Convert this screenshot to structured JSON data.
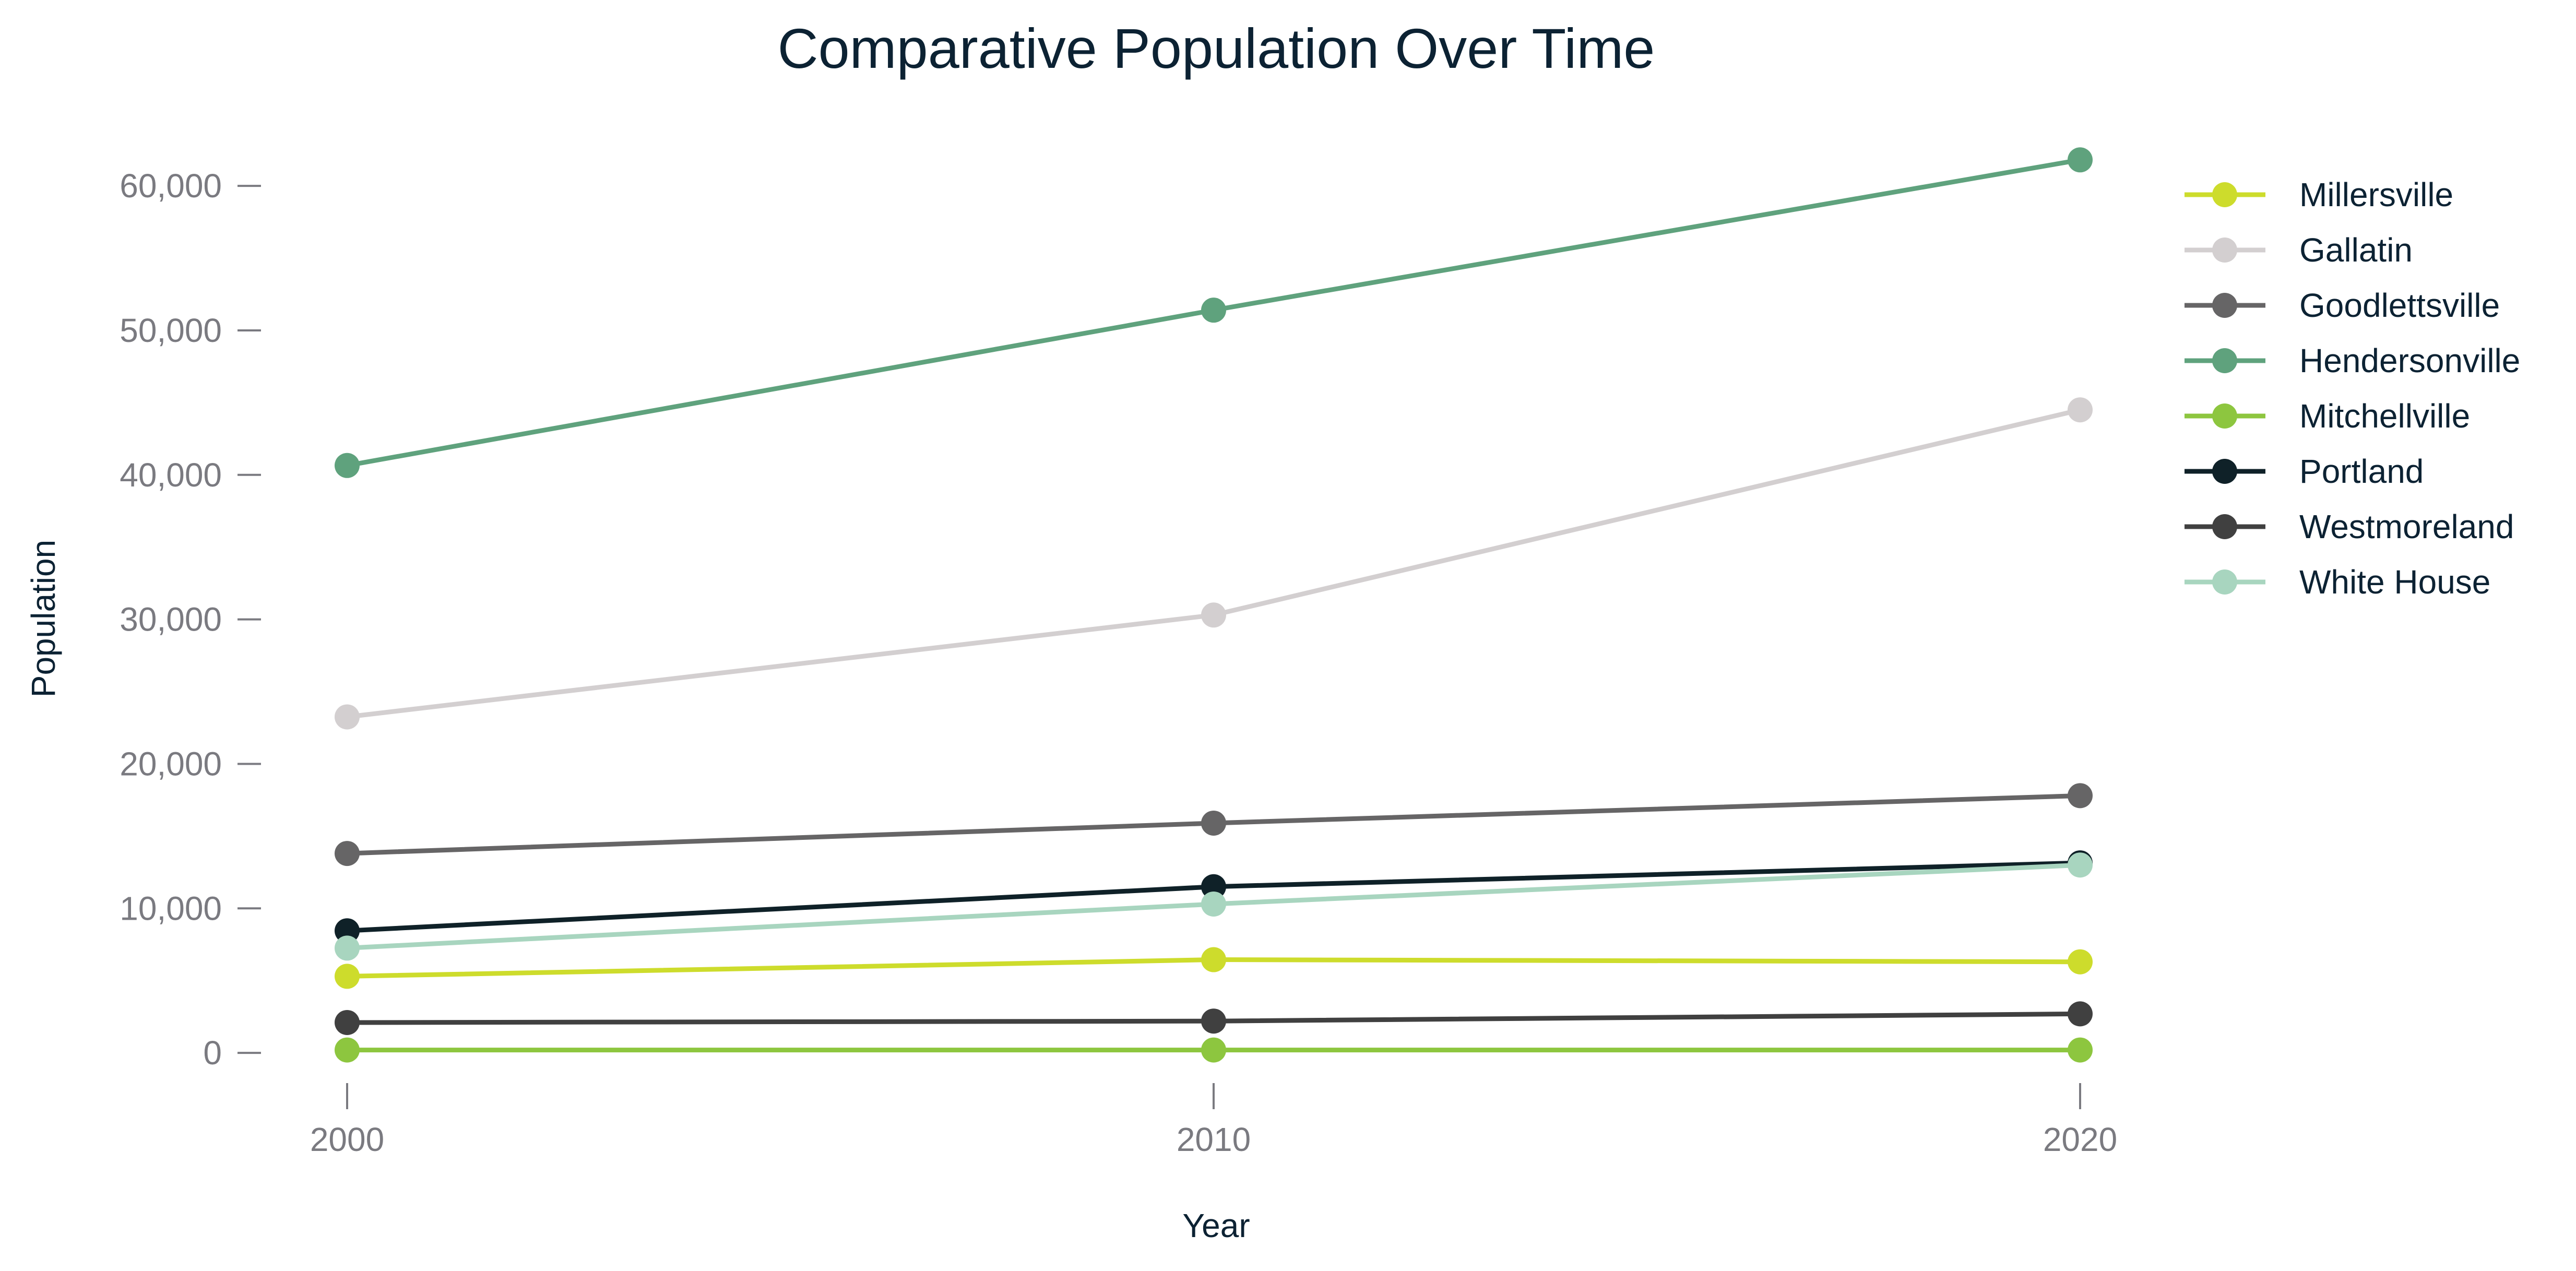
{
  "chart_data": {
    "type": "line",
    "title": "Comparative Population Over Time",
    "xlabel": "Year",
    "ylabel": "Population",
    "x": [
      2000,
      2010,
      2020
    ],
    "x_tick_labels": [
      "2000",
      "2010",
      "2020"
    ],
    "y_ticks": [
      0,
      10000,
      20000,
      30000,
      40000,
      50000,
      60000
    ],
    "y_tick_labels": [
      "0",
      "10,000",
      "20,000",
      "30,000",
      "40,000",
      "50,000",
      "60,000"
    ],
    "ylim": [
      -4800,
      66000
    ],
    "xlim": [
      1999,
      2021
    ],
    "grid": false,
    "legend_position": "top-right",
    "series": [
      {
        "name": "Millersville",
        "color": "#cddc2c",
        "values": [
          5300,
          6450,
          6300
        ]
      },
      {
        "name": "Gallatin",
        "color": "#d3cfd0",
        "values": [
          23250,
          30300,
          44500
        ]
      },
      {
        "name": "Goodlettsville",
        "color": "#666566",
        "values": [
          13800,
          15900,
          17800
        ]
      },
      {
        "name": "Hendersonville",
        "color": "#5fa27d",
        "values": [
          40650,
          51400,
          61800
        ]
      },
      {
        "name": "Mitchellville",
        "color": "#8dc63f",
        "values": [
          200,
          200,
          200
        ]
      },
      {
        "name": "Portland",
        "color": "#0f2128",
        "values": [
          8450,
          11500,
          13150
        ]
      },
      {
        "name": "Westmoreland",
        "color": "#404040",
        "values": [
          2100,
          2200,
          2700
        ]
      },
      {
        "name": "White House",
        "color": "#a8d5bf",
        "values": [
          7250,
          10300,
          13000
        ]
      }
    ]
  }
}
